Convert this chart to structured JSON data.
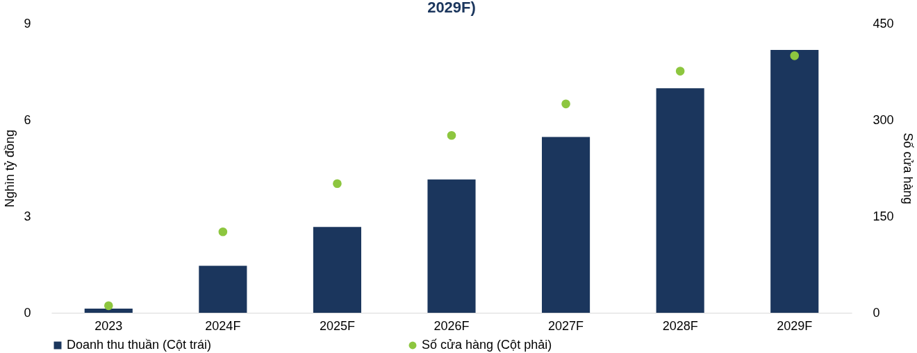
{
  "chart_data": {
    "type": "bar",
    "title": "2029F)",
    "ylabel": "Nghìn tỷ đồng",
    "y2label": "Số cửa hàng",
    "categories": [
      "2023",
      "2024F",
      "2025F",
      "2026F",
      "2027F",
      "2028F",
      "2029F"
    ],
    "series": [
      {
        "name": "Doanh thu thuần (Cột trái)",
        "color": "#1b365d",
        "values": [
          0.13,
          1.46,
          2.67,
          4.15,
          5.47,
          6.99,
          8.18
        ]
      },
      {
        "name": "Số cửa hàng (Cột phải)",
        "type": "scatter",
        "axis": "y2",
        "color": "#8dc63f",
        "values": [
          11,
          126,
          201,
          276,
          325,
          376,
          400
        ]
      }
    ],
    "ylim": [
      0,
      9
    ],
    "yticks": [
      0,
      3,
      6,
      9
    ],
    "y2lim": [
      0,
      450
    ],
    "y2ticks": [
      0,
      150,
      300,
      450
    ],
    "grid": false,
    "legend": "bottom",
    "marker": "circle"
  }
}
